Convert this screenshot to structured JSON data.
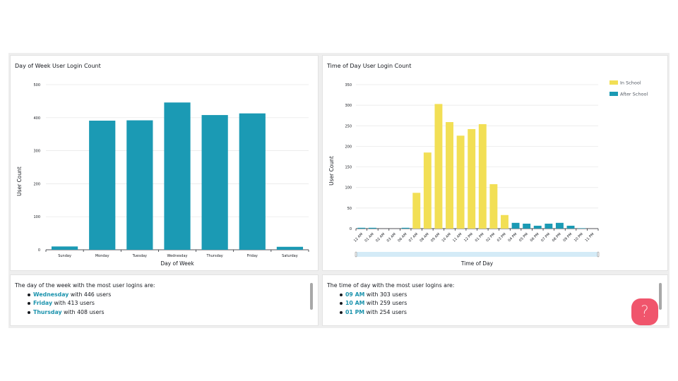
{
  "panels": {
    "day_chart_title": "Day of Week User Login Count",
    "time_chart_title": "Time of Day User Login Count",
    "day_summary": {
      "intro": "The day of the week with the most user logins are:",
      "items": [
        {
          "label": "Wednesday",
          "suffix": " with 446 users"
        },
        {
          "label": "Friday",
          "suffix": " with 413 users"
        },
        {
          "label": "Thursday",
          "suffix": " with 408 users"
        }
      ]
    },
    "time_summary": {
      "intro": "The time of day with the most user logins are:",
      "items": [
        {
          "label": "09 AM",
          "suffix": " with 303 users"
        },
        {
          "label": "10 AM",
          "suffix": " with 259 users"
        },
        {
          "label": "01 PM",
          "suffix": " with 254 users"
        }
      ]
    },
    "help_label": "?"
  },
  "colors": {
    "bar": "#1b9ab4",
    "in_school": "#f2df55",
    "after_school": "#1b9ab4",
    "highlight": "#1b93ad",
    "help": "#f0556c",
    "grid": "#e6e6e6",
    "slider": "#d4ebf7"
  },
  "chart_data": [
    {
      "type": "bar",
      "title": "Day of Week User Login Count",
      "xlabel": "Day of Week",
      "ylabel": "User Count",
      "ylim": [
        0,
        500
      ],
      "yticks": [
        0,
        100,
        200,
        300,
        400,
        500
      ],
      "grid": true,
      "categories": [
        "Sunday",
        "Monday",
        "Tuesday",
        "Wednesday",
        "Thursday",
        "Friday",
        "Saturday"
      ],
      "values": [
        10,
        391,
        392,
        446,
        408,
        413,
        9
      ]
    },
    {
      "type": "bar",
      "title": "Time of Day User Login Count",
      "xlabel": "Time of Day",
      "ylabel": "User Count",
      "ylim": [
        0,
        350
      ],
      "yticks": [
        0,
        50,
        100,
        150,
        200,
        250,
        300,
        350
      ],
      "grid": true,
      "legend": "top-right",
      "categories": [
        "12 AM",
        "01 AM",
        "02 AM",
        "03 AM",
        "06 AM",
        "07 AM",
        "08 AM",
        "09 AM",
        "10 AM",
        "11 AM",
        "12 PM",
        "01 PM",
        "02 PM",
        "03 PM",
        "04 PM",
        "05 PM",
        "06 PM",
        "07 PM",
        "08 PM",
        "09 PM",
        "10 PM",
        "11 PM"
      ],
      "series": [
        {
          "name": "In School",
          "values": [
            0,
            0,
            0,
            0,
            0,
            87,
            185,
            303,
            259,
            226,
            242,
            254,
            108,
            33,
            0,
            0,
            0,
            0,
            0,
            0,
            0,
            0
          ]
        },
        {
          "name": "After School",
          "values": [
            2,
            2,
            0,
            0,
            2,
            0,
            0,
            0,
            0,
            0,
            0,
            0,
            0,
            0,
            14,
            12,
            7,
            12,
            14,
            7,
            1,
            0
          ]
        }
      ]
    }
  ]
}
